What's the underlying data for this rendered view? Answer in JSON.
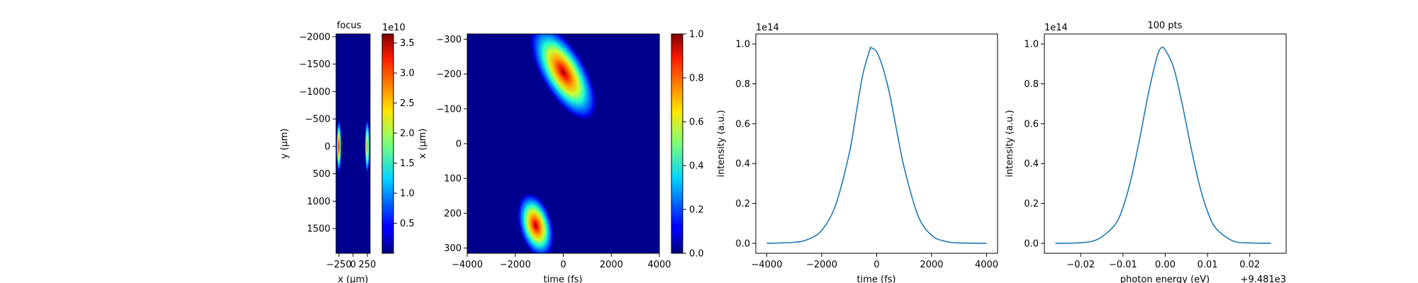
{
  "chart_data": [
    {
      "type": "heatmap",
      "title": "focus",
      "xlabel": "x (μm)",
      "ylabel": "y (μm)",
      "x_ticks": [
        -250,
        0,
        250
      ],
      "x_tick_labels": [
        "−250",
        "0",
        "250"
      ],
      "y_ticks": [
        -2000,
        -1500,
        -1000,
        -500,
        0,
        500,
        1000,
        1500
      ],
      "y_tick_labels": [
        "−2000",
        "−1500",
        "−1000",
        "−500",
        "0",
        "500",
        "1000",
        "1500"
      ],
      "xlim": [
        -300,
        300
      ],
      "ylim": [
        1950,
        -2050
      ],
      "colormap": "jet",
      "colorbar": {
        "range": [
          0,
          36500000000
        ],
        "ticks": [
          5000000000,
          10000000000,
          15000000000,
          20000000000,
          25000000000,
          30000000000,
          35000000000
        ],
        "tick_labels": [
          "0.5",
          "1.0",
          "1.5",
          "2.0",
          "2.5",
          "3.0",
          "3.5"
        ],
        "offset_text": "1e10"
      },
      "features": [
        {
          "x": -250,
          "y": 0,
          "half_width_x": 45,
          "half_width_y": 500,
          "peak": 36000000000
        },
        {
          "x": 250,
          "y": 0,
          "half_width_x": 45,
          "half_width_y": 500,
          "peak": 26000000000
        }
      ]
    },
    {
      "type": "heatmap",
      "title": "",
      "xlabel": "time (fs)",
      "ylabel": "x (μm)",
      "x_ticks": [
        -4000,
        -2000,
        0,
        2000,
        4000
      ],
      "x_tick_labels": [
        "−4000",
        "−2000",
        "0",
        "2000",
        "4000"
      ],
      "y_ticks": [
        -300,
        -200,
        -100,
        0,
        100,
        200,
        300
      ],
      "y_tick_labels": [
        "−300",
        "−200",
        "−100",
        "0",
        "100",
        "200",
        "300"
      ],
      "xlim": [
        -4000,
        4000
      ],
      "ylim": [
        315,
        -315
      ],
      "colormap": "jet",
      "colorbar": {
        "range": [
          0,
          1
        ],
        "ticks": [
          0,
          0.2,
          0.4,
          0.6,
          0.8,
          1.0
        ],
        "tick_labels": [
          "0.0",
          "0.2",
          "0.4",
          "0.6",
          "0.8",
          "1.0"
        ]
      },
      "features": [
        {
          "t_start": -800,
          "x_start": -300,
          "t_end": 800,
          "x_end": -110,
          "peak": 1.0
        },
        {
          "t_start": -900,
          "x_start": 300,
          "t_end": -1400,
          "x_end": 170,
          "peak": 1.0
        }
      ]
    },
    {
      "type": "line",
      "title": "",
      "xlabel": "time (fs)",
      "ylabel": "intensity (a.u.)",
      "y_offset_text": "1e14",
      "x_ticks": [
        -4000,
        -2000,
        0,
        2000,
        4000
      ],
      "x_tick_labels": [
        "−4000",
        "−2000",
        "0",
        "2000",
        "4000"
      ],
      "y_ticks": [
        0,
        0.2,
        0.4,
        0.6,
        0.8,
        1.0
      ],
      "y_tick_labels": [
        "0.0",
        "0.2",
        "0.4",
        "0.6",
        "0.8",
        "1.0"
      ],
      "xlim": [
        -4400,
        4400
      ],
      "ylim": [
        -0.05,
        1.05
      ],
      "series": [
        {
          "x": [
            -4000,
            -3000,
            -2500,
            -2000,
            -1500,
            -1000,
            -750,
            -500,
            -250,
            -200,
            0,
            250,
            500,
            750,
            1000,
            1500,
            2000,
            2500,
            3000,
            4000
          ],
          "y": [
            0.0,
            0.005,
            0.02,
            0.065,
            0.19,
            0.45,
            0.65,
            0.85,
            0.97,
            0.98,
            0.96,
            0.87,
            0.73,
            0.55,
            0.38,
            0.14,
            0.04,
            0.01,
            0.002,
            0.0
          ]
        }
      ]
    },
    {
      "type": "line",
      "title": "100 pts",
      "xlabel": "photon energy (eV)",
      "ylabel": "intensity (a.u.)",
      "y_offset_text": "1e14",
      "x_offset_text": "+9.481e3",
      "x_ticks": [
        -0.02,
        -0.01,
        0.0,
        0.01,
        0.02
      ],
      "x_tick_labels": [
        "−0.02",
        "−0.01",
        "0.00",
        "0.01",
        "0.02"
      ],
      "y_ticks": [
        0,
        0.2,
        0.4,
        0.6,
        0.8,
        1.0
      ],
      "y_tick_labels": [
        "0.0",
        "0.2",
        "0.4",
        "0.6",
        "0.8",
        "1.0"
      ],
      "xlim": [
        -0.0286,
        0.0286
      ],
      "ylim": [
        -0.05,
        1.05
      ],
      "series": [
        {
          "x": [
            -0.026,
            -0.02,
            -0.016,
            -0.012,
            -0.01,
            -0.008,
            -0.006,
            -0.004,
            -0.002,
            -0.001,
            0.0,
            0.002,
            0.004,
            0.006,
            0.008,
            0.01,
            0.012,
            0.016,
            0.02,
            0.025
          ],
          "y": [
            0.0,
            0.003,
            0.02,
            0.09,
            0.18,
            0.33,
            0.53,
            0.75,
            0.93,
            0.98,
            0.97,
            0.88,
            0.7,
            0.49,
            0.3,
            0.16,
            0.075,
            0.012,
            0.002,
            0.0
          ]
        }
      ]
    }
  ]
}
